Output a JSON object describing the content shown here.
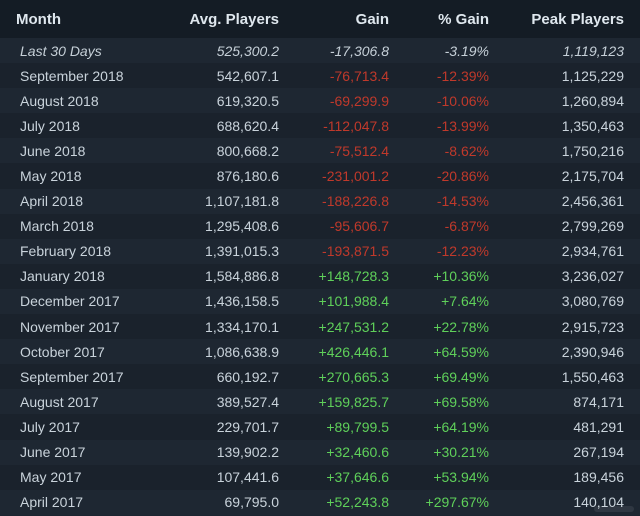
{
  "colors": {
    "negative": "#c0392b",
    "positive": "#5fd05a",
    "background": "#1b2838",
    "header_text": "#dfe7ee"
  },
  "table": {
    "headers": {
      "month": "Month",
      "avg_players": "Avg. Players",
      "gain": "Gain",
      "pct_gain": "% Gain",
      "peak_players": "Peak Players"
    },
    "rows": [
      {
        "month": "Last 30 Days",
        "avg": "525,300.2",
        "gain": "-17,306.8",
        "pct": "-3.19%",
        "peak": "1,119,123",
        "trend": "neg",
        "summary": true
      },
      {
        "month": "September 2018",
        "avg": "542,607.1",
        "gain": "-76,713.4",
        "pct": "-12.39%",
        "peak": "1,125,229",
        "trend": "neg"
      },
      {
        "month": "August 2018",
        "avg": "619,320.5",
        "gain": "-69,299.9",
        "pct": "-10.06%",
        "peak": "1,260,894",
        "trend": "neg"
      },
      {
        "month": "July 2018",
        "avg": "688,620.4",
        "gain": "-112,047.8",
        "pct": "-13.99%",
        "peak": "1,350,463",
        "trend": "neg"
      },
      {
        "month": "June 2018",
        "avg": "800,668.2",
        "gain": "-75,512.4",
        "pct": "-8.62%",
        "peak": "1,750,216",
        "trend": "neg"
      },
      {
        "month": "May 2018",
        "avg": "876,180.6",
        "gain": "-231,001.2",
        "pct": "-20.86%",
        "peak": "2,175,704",
        "trend": "neg"
      },
      {
        "month": "April 2018",
        "avg": "1,107,181.8",
        "gain": "-188,226.8",
        "pct": "-14.53%",
        "peak": "2,456,361",
        "trend": "neg"
      },
      {
        "month": "March 2018",
        "avg": "1,295,408.6",
        "gain": "-95,606.7",
        "pct": "-6.87%",
        "peak": "2,799,269",
        "trend": "neg"
      },
      {
        "month": "February 2018",
        "avg": "1,391,015.3",
        "gain": "-193,871.5",
        "pct": "-12.23%",
        "peak": "2,934,761",
        "trend": "neg"
      },
      {
        "month": "January 2018",
        "avg": "1,584,886.8",
        "gain": "+148,728.3",
        "pct": "+10.36%",
        "peak": "3,236,027",
        "trend": "pos"
      },
      {
        "month": "December 2017",
        "avg": "1,436,158.5",
        "gain": "+101,988.4",
        "pct": "+7.64%",
        "peak": "3,080,769",
        "trend": "pos"
      },
      {
        "month": "November 2017",
        "avg": "1,334,170.1",
        "gain": "+247,531.2",
        "pct": "+22.78%",
        "peak": "2,915,723",
        "trend": "pos"
      },
      {
        "month": "October 2017",
        "avg": "1,086,638.9",
        "gain": "+426,446.1",
        "pct": "+64.59%",
        "peak": "2,390,946",
        "trend": "pos"
      },
      {
        "month": "September 2017",
        "avg": "660,192.7",
        "gain": "+270,665.3",
        "pct": "+69.49%",
        "peak": "1,550,463",
        "trend": "pos"
      },
      {
        "month": "August 2017",
        "avg": "389,527.4",
        "gain": "+159,825.7",
        "pct": "+69.58%",
        "peak": "874,171",
        "trend": "pos"
      },
      {
        "month": "July 2017",
        "avg": "229,701.7",
        "gain": "+89,799.5",
        "pct": "+64.19%",
        "peak": "481,291",
        "trend": "pos"
      },
      {
        "month": "June 2017",
        "avg": "139,902.2",
        "gain": "+32,460.6",
        "pct": "+30.21%",
        "peak": "267,194",
        "trend": "pos"
      },
      {
        "month": "May 2017",
        "avg": "107,441.6",
        "gain": "+37,646.6",
        "pct": "+53.94%",
        "peak": "189,456",
        "trend": "pos"
      },
      {
        "month": "April 2017",
        "avg": "69,795.0",
        "gain": "+52,243.8",
        "pct": "+297.67%",
        "peak": "140,104",
        "trend": "pos"
      }
    ]
  }
}
